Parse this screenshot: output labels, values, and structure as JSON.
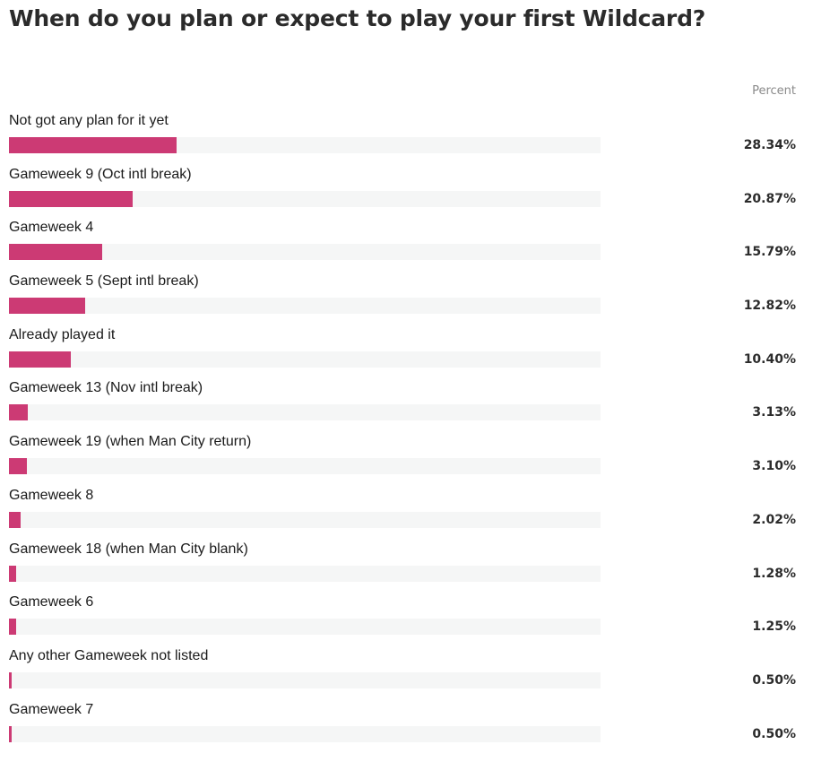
{
  "colors": {
    "bar": "#cc3a74",
    "track": "#f5f6f6"
  },
  "chart_data": {
    "type": "bar",
    "orientation": "horizontal",
    "title": "When do you plan or expect to play your first Wildcard?",
    "column_header": "Percent",
    "categories": [
      "Not got any plan for it yet",
      "Gameweek 9 (Oct intl break)",
      "Gameweek 4",
      "Gameweek 5 (Sept intl break)",
      "Already played it",
      "Gameweek 13 (Nov intl break)",
      "Gameweek 19 (when Man City return)",
      "Gameweek 8",
      "Gameweek 18 (when Man City blank)",
      "Gameweek 6",
      "Any other Gameweek not listed",
      "Gameweek 7"
    ],
    "values": [
      28.34,
      20.87,
      15.79,
      12.82,
      10.4,
      3.13,
      3.1,
      2.02,
      1.28,
      1.25,
      0.5,
      0.5
    ],
    "value_labels": [
      "28.34%",
      "20.87%",
      "15.79%",
      "12.82%",
      "10.40%",
      "3.13%",
      "3.10%",
      "2.02%",
      "1.28%",
      "1.25%",
      "0.50%",
      "0.50%"
    ],
    "xlim": [
      0,
      100
    ],
    "grid": false
  }
}
